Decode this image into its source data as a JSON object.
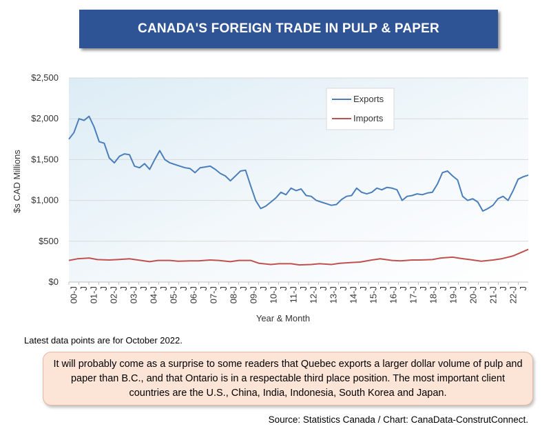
{
  "title": "CANADA'S FOREIGN TRADE IN PULP & PAPER",
  "note": "Latest data points are for October 2022.",
  "callout": "It will probably come as a surprise to some readers that Quebec exports a larger dollar volume of pulp and paper than B.C., and that Ontario is in a respectable third place position. The most important client countries are the U.S., China, India, Indonesia, South Korea and Japan.",
  "source": "Source: Statistics Canada / Chart: CanaData-ConstrutConnect.",
  "chart_data": {
    "type": "line",
    "xlabel": "Year & Month",
    "ylabel": "$s CAD Millions",
    "ylim": [
      0,
      2500
    ],
    "y_ticks": [
      0,
      500,
      1000,
      1500,
      2000,
      2500
    ],
    "y_tick_labels": [
      "$0",
      "$500",
      "$1,000",
      "$1,500",
      "$2,000",
      "$2,500"
    ],
    "x_range": [
      "2000-01",
      "2022-10"
    ],
    "x_tick_labels": [
      "00-J",
      "J",
      "01-J",
      "J",
      "02-J",
      "J",
      "03-J",
      "J",
      "04-J",
      "J",
      "05-J",
      "J",
      "06-J",
      "J",
      "07-J",
      "J",
      "08-J",
      "J",
      "09-J",
      "J",
      "10-J",
      "J",
      "11-J",
      "J",
      "12-J",
      "J",
      "13-J",
      "J",
      "14-J",
      "J",
      "15-J",
      "J",
      "16-J",
      "J",
      "17-J",
      "J",
      "18-J",
      "J",
      "19-J",
      "J",
      "20-J",
      "J",
      "21-J",
      "J",
      "22-J",
      "J"
    ],
    "legend_position": "top-right",
    "grid": true,
    "series": [
      {
        "name": "Exports",
        "color": "#4a7ebb",
        "points": [
          [
            "2000-01",
            1750
          ],
          [
            "2000-04",
            1830
          ],
          [
            "2000-07",
            2000
          ],
          [
            "2000-10",
            1980
          ],
          [
            "2001-01",
            2030
          ],
          [
            "2001-04",
            1900
          ],
          [
            "2001-07",
            1720
          ],
          [
            "2001-10",
            1700
          ],
          [
            "2002-01",
            1520
          ],
          [
            "2002-04",
            1460
          ],
          [
            "2002-07",
            1540
          ],
          [
            "2002-10",
            1570
          ],
          [
            "2003-01",
            1560
          ],
          [
            "2003-04",
            1420
          ],
          [
            "2003-07",
            1400
          ],
          [
            "2003-10",
            1450
          ],
          [
            "2004-01",
            1380
          ],
          [
            "2004-04",
            1500
          ],
          [
            "2004-07",
            1610
          ],
          [
            "2004-10",
            1500
          ],
          [
            "2005-01",
            1460
          ],
          [
            "2005-04",
            1440
          ],
          [
            "2005-07",
            1420
          ],
          [
            "2005-10",
            1400
          ],
          [
            "2006-01",
            1390
          ],
          [
            "2006-04",
            1340
          ],
          [
            "2006-07",
            1400
          ],
          [
            "2006-10",
            1410
          ],
          [
            "2007-01",
            1420
          ],
          [
            "2007-04",
            1380
          ],
          [
            "2007-07",
            1330
          ],
          [
            "2007-10",
            1300
          ],
          [
            "2008-01",
            1240
          ],
          [
            "2008-04",
            1300
          ],
          [
            "2008-07",
            1360
          ],
          [
            "2008-10",
            1370
          ],
          [
            "2009-01",
            1180
          ],
          [
            "2009-04",
            1000
          ],
          [
            "2009-07",
            900
          ],
          [
            "2009-10",
            930
          ],
          [
            "2010-01",
            980
          ],
          [
            "2010-04",
            1030
          ],
          [
            "2010-07",
            1100
          ],
          [
            "2010-10",
            1070
          ],
          [
            "2011-01",
            1150
          ],
          [
            "2011-04",
            1120
          ],
          [
            "2011-07",
            1140
          ],
          [
            "2011-10",
            1060
          ],
          [
            "2012-01",
            1050
          ],
          [
            "2012-04",
            1000
          ],
          [
            "2012-07",
            980
          ],
          [
            "2012-10",
            960
          ],
          [
            "2013-01",
            940
          ],
          [
            "2013-04",
            950
          ],
          [
            "2013-07",
            1010
          ],
          [
            "2013-10",
            1050
          ],
          [
            "2014-01",
            1060
          ],
          [
            "2014-04",
            1150
          ],
          [
            "2014-07",
            1100
          ],
          [
            "2014-10",
            1080
          ],
          [
            "2015-01",
            1100
          ],
          [
            "2015-04",
            1150
          ],
          [
            "2015-07",
            1130
          ],
          [
            "2015-10",
            1160
          ],
          [
            "2016-01",
            1150
          ],
          [
            "2016-04",
            1130
          ],
          [
            "2016-07",
            1000
          ],
          [
            "2016-10",
            1050
          ],
          [
            "2017-01",
            1060
          ],
          [
            "2017-04",
            1080
          ],
          [
            "2017-07",
            1070
          ],
          [
            "2017-10",
            1090
          ],
          [
            "2018-01",
            1100
          ],
          [
            "2018-04",
            1200
          ],
          [
            "2018-07",
            1340
          ],
          [
            "2018-10",
            1360
          ],
          [
            "2019-01",
            1300
          ],
          [
            "2019-04",
            1250
          ],
          [
            "2019-07",
            1050
          ],
          [
            "2019-10",
            1000
          ],
          [
            "2020-01",
            1020
          ],
          [
            "2020-04",
            980
          ],
          [
            "2020-07",
            870
          ],
          [
            "2020-10",
            900
          ],
          [
            "2021-01",
            940
          ],
          [
            "2021-04",
            1020
          ],
          [
            "2021-07",
            1050
          ],
          [
            "2021-10",
            1000
          ],
          [
            "2022-01",
            1120
          ],
          [
            "2022-04",
            1260
          ],
          [
            "2022-07",
            1290
          ],
          [
            "2022-10",
            1310
          ]
        ]
      },
      {
        "name": "Imports",
        "color": "#c0504d",
        "points": [
          [
            "2000-01",
            265
          ],
          [
            "2000-06",
            285
          ],
          [
            "2001-01",
            295
          ],
          [
            "2001-06",
            275
          ],
          [
            "2002-01",
            270
          ],
          [
            "2002-06",
            275
          ],
          [
            "2003-01",
            285
          ],
          [
            "2003-06",
            270
          ],
          [
            "2004-01",
            250
          ],
          [
            "2004-06",
            265
          ],
          [
            "2005-01",
            265
          ],
          [
            "2005-06",
            255
          ],
          [
            "2006-01",
            260
          ],
          [
            "2006-06",
            260
          ],
          [
            "2007-01",
            270
          ],
          [
            "2007-06",
            265
          ],
          [
            "2008-01",
            250
          ],
          [
            "2008-06",
            265
          ],
          [
            "2009-01",
            265
          ],
          [
            "2009-06",
            230
          ],
          [
            "2010-01",
            215
          ],
          [
            "2010-06",
            225
          ],
          [
            "2011-01",
            225
          ],
          [
            "2011-06",
            210
          ],
          [
            "2012-01",
            215
          ],
          [
            "2012-06",
            225
          ],
          [
            "2013-01",
            215
          ],
          [
            "2013-06",
            230
          ],
          [
            "2014-01",
            240
          ],
          [
            "2014-06",
            245
          ],
          [
            "2015-01",
            270
          ],
          [
            "2015-06",
            285
          ],
          [
            "2016-01",
            265
          ],
          [
            "2016-06",
            260
          ],
          [
            "2017-01",
            270
          ],
          [
            "2017-06",
            270
          ],
          [
            "2018-01",
            275
          ],
          [
            "2018-06",
            295
          ],
          [
            "2019-01",
            305
          ],
          [
            "2019-06",
            290
          ],
          [
            "2020-01",
            270
          ],
          [
            "2020-06",
            255
          ],
          [
            "2021-01",
            270
          ],
          [
            "2021-06",
            285
          ],
          [
            "2022-01",
            320
          ],
          [
            "2022-06",
            365
          ],
          [
            "2022-10",
            400
          ]
        ]
      }
    ]
  }
}
